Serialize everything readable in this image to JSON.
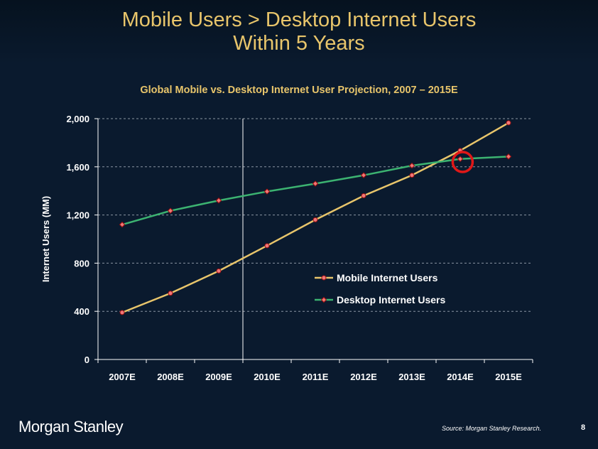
{
  "slide": {
    "title_line1": "Mobile Users > Desktop Internet Users",
    "title_line2": "Within 5 Years",
    "brand": "Morgan Stanley",
    "source": "Source: Morgan Stanley Research.",
    "page_number": "8"
  },
  "colors": {
    "background": "#0a1a2e",
    "title": "#e8c56b",
    "mobile_line": "#e8c56b",
    "desktop_line": "#3cb371",
    "marker_fill": "#f07878",
    "marker_edge": "#a01010",
    "highlight_circle": "#e01818"
  },
  "chart_data": {
    "type": "line",
    "title": "Global Mobile vs. Desktop Internet User Projection, 2007 – 2015E",
    "xlabel": "",
    "ylabel": "Internet Users (MM)",
    "categories": [
      "2007E",
      "2008E",
      "2009E",
      "2010E",
      "2011E",
      "2012E",
      "2013E",
      "2014E",
      "2015E"
    ],
    "ylim": [
      0,
      2000
    ],
    "yticks": [
      0,
      400,
      800,
      1200,
      1600,
      2000
    ],
    "ytick_labels": [
      "0",
      "400",
      "800",
      "1,200",
      "1,600",
      "2,000"
    ],
    "grid": "horizontal dashed",
    "legend_position": "center-right",
    "series": [
      {
        "name": "Mobile Internet Users",
        "values": [
          390,
          550,
          735,
          945,
          1160,
          1360,
          1530,
          1735,
          1965
        ]
      },
      {
        "name": "Desktop Internet Users",
        "values": [
          1120,
          1235,
          1320,
          1395,
          1460,
          1530,
          1610,
          1665,
          1685
        ]
      }
    ],
    "annotations": [
      {
        "type": "vertical-line",
        "category": "2010E"
      },
      {
        "type": "highlight-circle",
        "label": "crossover",
        "category_position": 7.55,
        "value": 1640
      }
    ]
  }
}
